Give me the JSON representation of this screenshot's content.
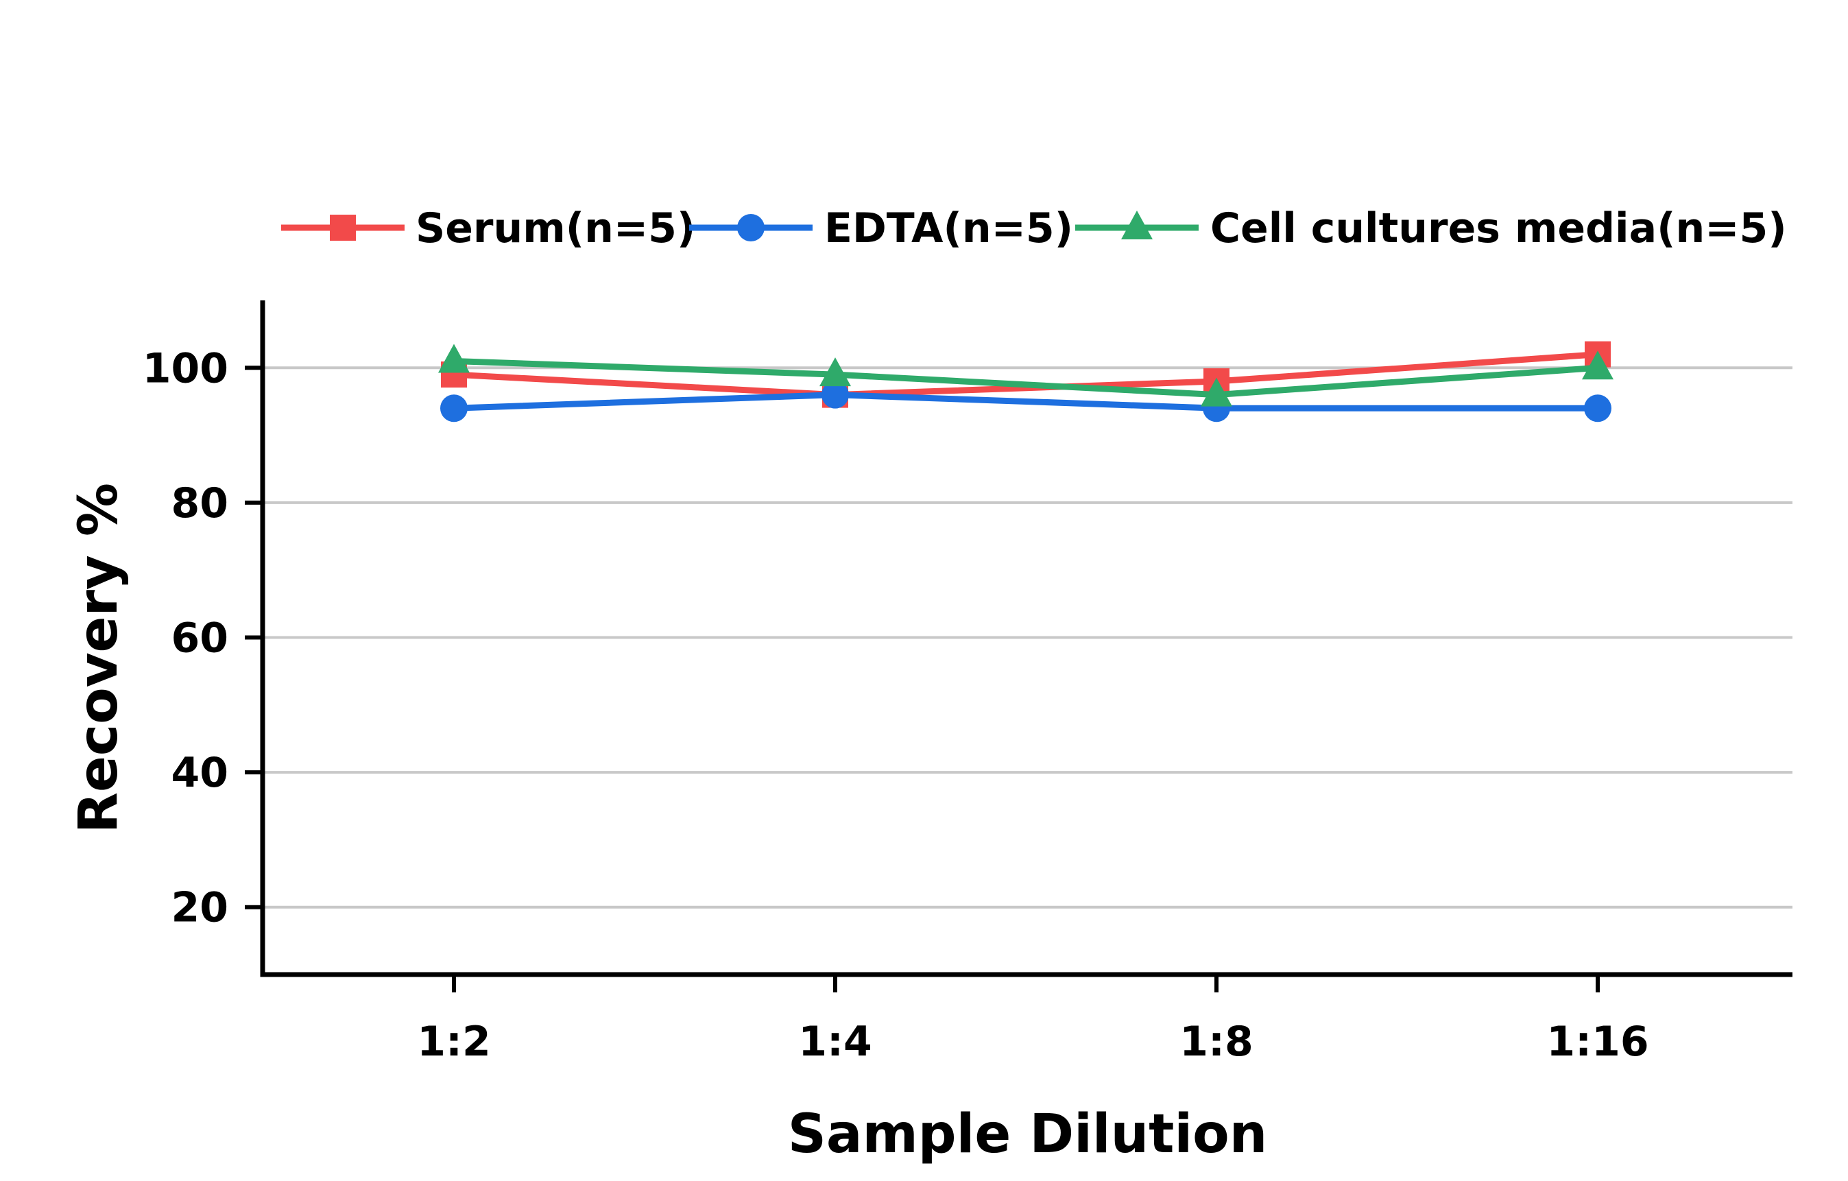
{
  "chart_data": {
    "type": "line",
    "title": "",
    "xlabel": "Sample Dilution",
    "ylabel": "Recovery %",
    "categories": [
      "1:2",
      "1:4",
      "1:8",
      "1:16"
    ],
    "ylim": [
      10,
      110
    ],
    "yticks": [
      20,
      40,
      60,
      80,
      100
    ],
    "grid": "horizontal",
    "legend_position": "top",
    "series": [
      {
        "name": "Serum(n=5)",
        "values": [
          99,
          96,
          98,
          102
        ],
        "color": "#f24a4a",
        "marker": "square"
      },
      {
        "name": "EDTA(n=5)",
        "values": [
          94,
          96,
          94,
          94
        ],
        "color": "#1e6fdf",
        "marker": "circle"
      },
      {
        "name": "Cell cultures media(n=5)",
        "values": [
          101,
          99,
          96,
          100
        ],
        "color": "#2faa6a",
        "marker": "triangle"
      }
    ]
  }
}
